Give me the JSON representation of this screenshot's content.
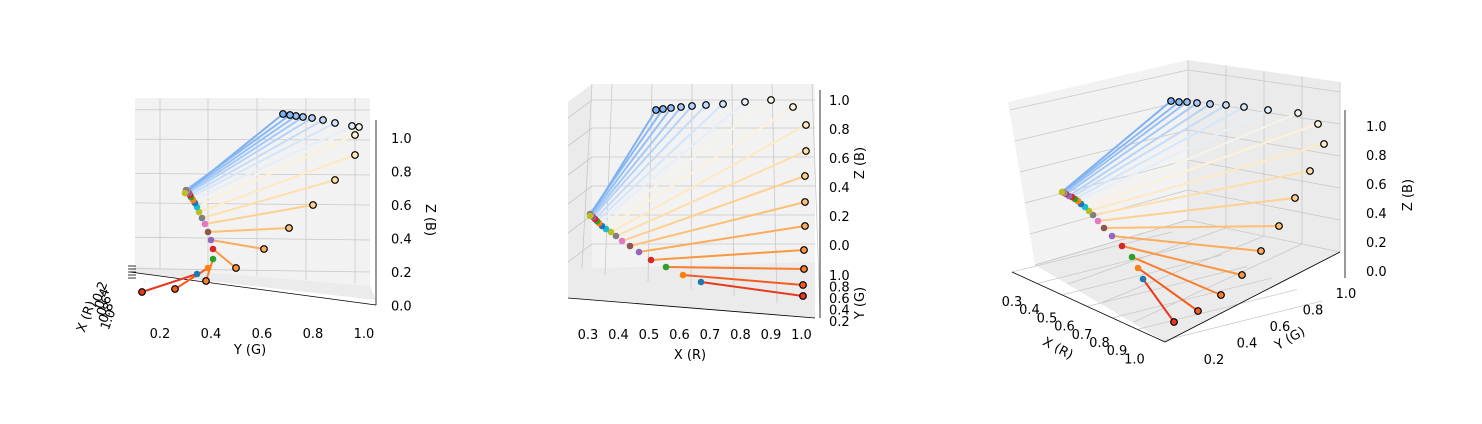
{
  "chart_data": [
    {
      "type": "scatter",
      "xlabel": "X (R)",
      "ylabel": "Y (G)",
      "zlabel": "Z (B)",
      "xticks": [
        "0.2",
        "0.4",
        "0.6",
        "0.8",
        "1.0"
      ],
      "yticks": [
        "0.2",
        "0.4",
        "0.6",
        "0.8",
        "1.0"
      ],
      "zticks": [
        "0.0",
        "0.2",
        "0.4",
        "0.6",
        "0.8",
        "1.0"
      ],
      "view": "elev ~0, azim ~0 (Y-Z face)"
    },
    {
      "type": "scatter",
      "xlabel": "X (R)",
      "ylabel": "Y (G)",
      "zlabel": "Z (B)",
      "xticks": [
        "0.3",
        "0.4",
        "0.5",
        "0.6",
        "0.7",
        "0.8",
        "0.9",
        "1.0"
      ],
      "yticks": [
        "0.2",
        "0.4",
        "0.6",
        "0.8",
        "1.0"
      ],
      "zticks": [
        "0.0",
        "0.2",
        "0.4",
        "0.6",
        "0.8",
        "1.0"
      ],
      "view": "elev ~0, azim ~-90 (X-Z face)"
    },
    {
      "type": "scatter",
      "xlabel": "X (R)",
      "ylabel": "Y (G)",
      "zlabel": "Z (B)",
      "xticks": [
        "0.3",
        "0.4",
        "0.5",
        "0.6",
        "0.7",
        "0.8",
        "0.9",
        "1.0"
      ],
      "yticks": [
        "0.2",
        "0.4",
        "0.6",
        "0.8",
        "1.0"
      ],
      "zticks": [
        "0.0",
        "0.2",
        "0.4",
        "0.6",
        "0.8",
        "1.0"
      ],
      "view": "default perspective"
    }
  ],
  "series": {
    "source_colors": [
      "#1f77b4",
      "#ff7f0e",
      "#2ca02c",
      "#d62728",
      "#9467bd",
      "#8c564b",
      "#e377c2",
      "#7f7f7f",
      "#bcbd22",
      "#17becf",
      "#1f77b4",
      "#ff7f0e",
      "#2ca02c",
      "#d62728",
      "#9467bd",
      "#8c564b",
      "#e377c2",
      "#7f7f7f",
      "#bcbd22"
    ],
    "target_colors": [
      "#e8391d",
      "#f45c1f",
      "#f97d2c",
      "#fb9641",
      "#fcab5b",
      "#fdbf74",
      "#fed08f",
      "#fedea9",
      "#fee9c2",
      "#fdf2d9",
      "#f5f3ea",
      "#e6eefa",
      "#d4e6fb",
      "#c4dcfa",
      "#b4d3f9",
      "#a4c9f7",
      "#96c0f5",
      "#89b8f3",
      "#7eb1f1"
    ]
  }
}
